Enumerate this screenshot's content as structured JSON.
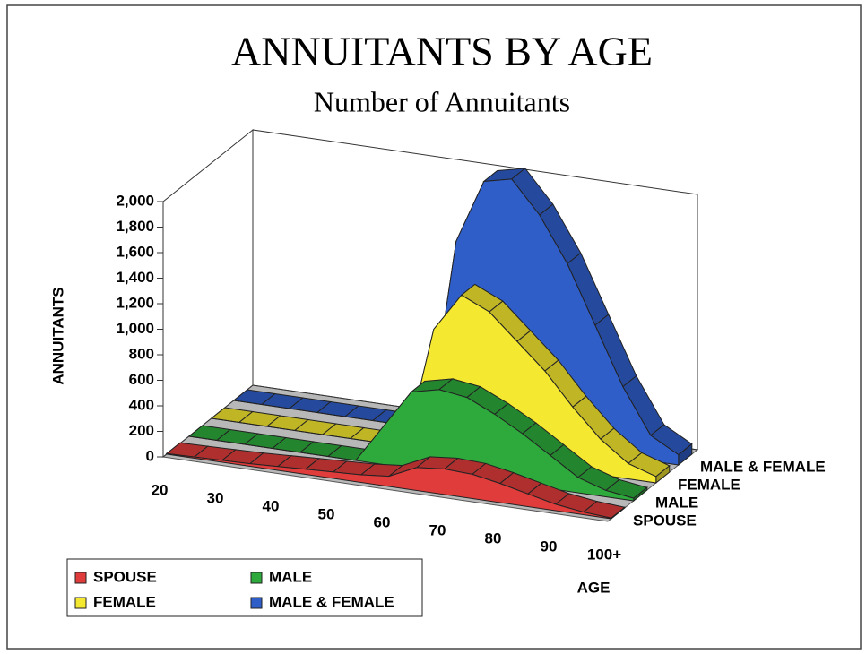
{
  "chart_data": {
    "type": "area3d",
    "title": "ANNUITANTS BY AGE",
    "subtitle": "Number of Annuitants",
    "y_label": "ANNUITANTS",
    "x_label": "AGE",
    "categories": [
      "20",
      null,
      "30",
      null,
      "40",
      null,
      "50",
      null,
      "60",
      null,
      "70",
      null,
      "80",
      null,
      "90",
      null,
      "100+"
    ],
    "series": [
      {
        "name": "SPOUSE",
        "color": "#e03c3c",
        "values": [
          5,
          10,
          15,
          20,
          30,
          40,
          50,
          60,
          80,
          180,
          200,
          190,
          150,
          100,
          50,
          20,
          5
        ]
      },
      {
        "name": "MALE",
        "color": "#2eaa3c",
        "values": [
          0,
          0,
          0,
          0,
          0,
          0,
          0,
          300,
          600,
          650,
          620,
          520,
          400,
          260,
          120,
          50,
          20
        ]
      },
      {
        "name": "FEMALE",
        "color": "#f5e830",
        "values": [
          0,
          0,
          0,
          0,
          0,
          0,
          0,
          0,
          950,
          1250,
          1150,
          950,
          750,
          500,
          280,
          120,
          50
        ]
      },
      {
        "name": "MALE & FEMALE",
        "color": "#2f5ec8",
        "values": [
          0,
          0,
          0,
          0,
          0,
          0,
          0,
          0,
          1500,
          2000,
          2050,
          1800,
          1450,
          1000,
          550,
          200,
          80
        ]
      }
    ],
    "ylim": [
      0,
      2000
    ],
    "yticks": [
      0,
      200,
      400,
      600,
      800,
      {
        "value": 1000,
        "label": "1,000"
      },
      {
        "value": 1200,
        "label": "1,200"
      },
      {
        "value": 1400,
        "label": "1,400"
      },
      {
        "value": 1600,
        "label": "1,600"
      },
      {
        "value": 1800,
        "label": "1,800"
      },
      {
        "value": 2000,
        "label": "2,000"
      }
    ]
  }
}
